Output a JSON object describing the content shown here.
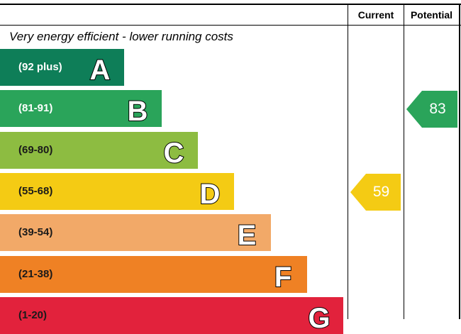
{
  "header": {
    "current_label": "Current",
    "potential_label": "Potential"
  },
  "subtitle": "Very energy efficient - lower running costs",
  "bands": [
    {
      "letter": "A",
      "range": "(92 plus)",
      "color": "#0e7e58",
      "text_color": "#ffffff"
    },
    {
      "letter": "B",
      "range": "(81-91)",
      "color": "#2aa45a",
      "text_color": "#ffffff"
    },
    {
      "letter": "C",
      "range": "(69-80)",
      "color": "#8dbc41",
      "text_color": "#1a1a1a"
    },
    {
      "letter": "D",
      "range": "(55-68)",
      "color": "#f4cb14",
      "text_color": "#1a1a1a"
    },
    {
      "letter": "E",
      "range": "(39-54)",
      "color": "#f2a968",
      "text_color": "#1a1a1a"
    },
    {
      "letter": "F",
      "range": "(21-38)",
      "color": "#ef8124",
      "text_color": "#1a1a1a"
    },
    {
      "letter": "G",
      "range": "(1-20)",
      "color": "#e2223c",
      "text_color": "#1a1a1a"
    }
  ],
  "ratings": {
    "current": {
      "value": "59",
      "band": "D",
      "color": "#f4cb14"
    },
    "potential": {
      "value": "83",
      "band": "B",
      "color": "#2aa45a"
    }
  }
}
